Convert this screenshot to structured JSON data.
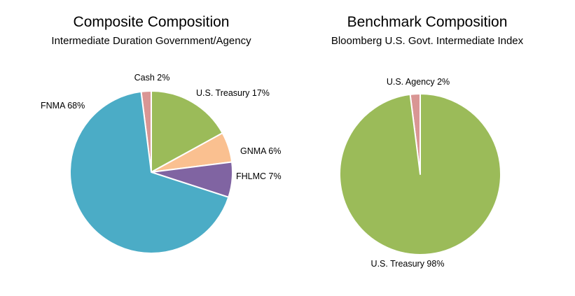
{
  "chart_data": [
    {
      "type": "pie",
      "title": "Composite Composition",
      "subtitle": "Intermediate Duration Government/Agency",
      "slices": [
        {
          "label": "Cash 2%",
          "name": "Cash",
          "value": 2,
          "color": "#D99694"
        },
        {
          "label": "U.S. Treasury 17%",
          "name": "U.S. Treasury",
          "value": 17,
          "color": "#9BBB59"
        },
        {
          "label": "GNMA 6%",
          "name": "GNMA",
          "value": 6,
          "color": "#FAC090"
        },
        {
          "label": "FHLMC 7%",
          "name": "FHLMC",
          "value": 7,
          "color": "#8064A2"
        },
        {
          "label": "FNMA 68%",
          "name": "FNMA",
          "value": 68,
          "color": "#4BACC6"
        }
      ]
    },
    {
      "type": "pie",
      "title": "Benchmark Composition",
      "subtitle": "Bloomberg U.S. Govt. Intermediate Index",
      "slices": [
        {
          "label": "U.S. Agency 2%",
          "name": "U.S. Agency",
          "value": 2,
          "color": "#D99694"
        },
        {
          "label": "U.S. Treasury 98%",
          "name": "U.S. Treasury",
          "value": 98,
          "color": "#9BBB59"
        }
      ]
    }
  ]
}
